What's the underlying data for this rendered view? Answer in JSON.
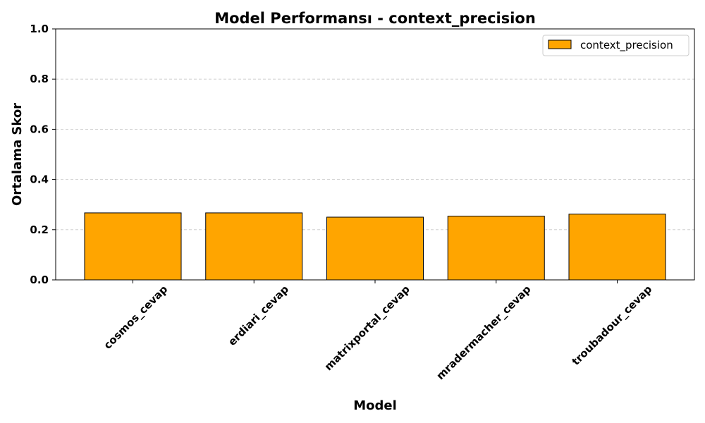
{
  "chart_data": {
    "type": "bar",
    "title": "Model Performansı - context_precision",
    "xlabel": "Model",
    "ylabel": "Ortalama Skor",
    "categories": [
      "cosmos_cevap",
      "erdiari_cevap",
      "matrixportal_cevap",
      "mradermacher_cevap",
      "troubadour_cevap"
    ],
    "series": [
      {
        "name": "context_precision",
        "values": [
          0.267,
          0.267,
          0.25,
          0.254,
          0.262
        ],
        "color": "#ffa500",
        "edge_color": "#000000"
      }
    ],
    "ylim": [
      0,
      1.0
    ],
    "yticks": [
      "0.0",
      "0.2",
      "0.4",
      "0.6",
      "0.8",
      "1.0"
    ],
    "grid": "y-dashed",
    "legend_position": "top-right"
  }
}
